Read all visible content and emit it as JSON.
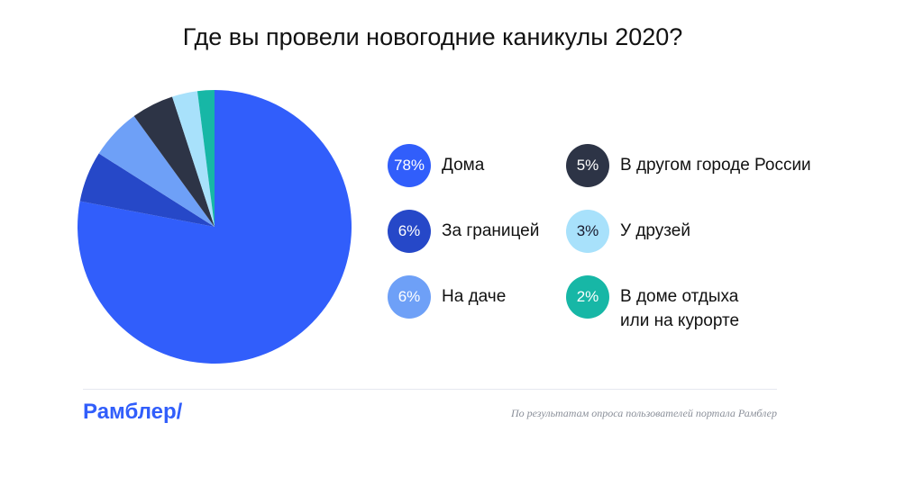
{
  "chart_data": {
    "type": "pie",
    "title": "Где вы провели новогодние каникулы 2020?",
    "series": [
      {
        "name": "Дома",
        "value": 78,
        "label": "78%",
        "color": "#315efb",
        "text_color": "#ffffff"
      },
      {
        "name": "За границей",
        "value": 6,
        "label": "6%",
        "color": "#2648c8",
        "text_color": "#ffffff"
      },
      {
        "name": "На даче",
        "value": 6,
        "label": "6%",
        "color": "#6ea0f7",
        "text_color": "#ffffff"
      },
      {
        "name": "В другом городе России",
        "value": 5,
        "label": "5%",
        "color": "#2d3446",
        "text_color": "#ffffff"
      },
      {
        "name": "У друзей",
        "value": 3,
        "label": "3%",
        "color": "#a8e1fb",
        "text_color": "#1a1a2e"
      },
      {
        "name": "В доме отдыха\nили на курорте",
        "value": 2,
        "label": "2%",
        "color": "#17b7a6",
        "text_color": "#ffffff"
      }
    ],
    "legend": "right"
  },
  "footer": {
    "brand": "Рамблер/",
    "source": "По результатам опроса пользователей портала Рамблер"
  }
}
